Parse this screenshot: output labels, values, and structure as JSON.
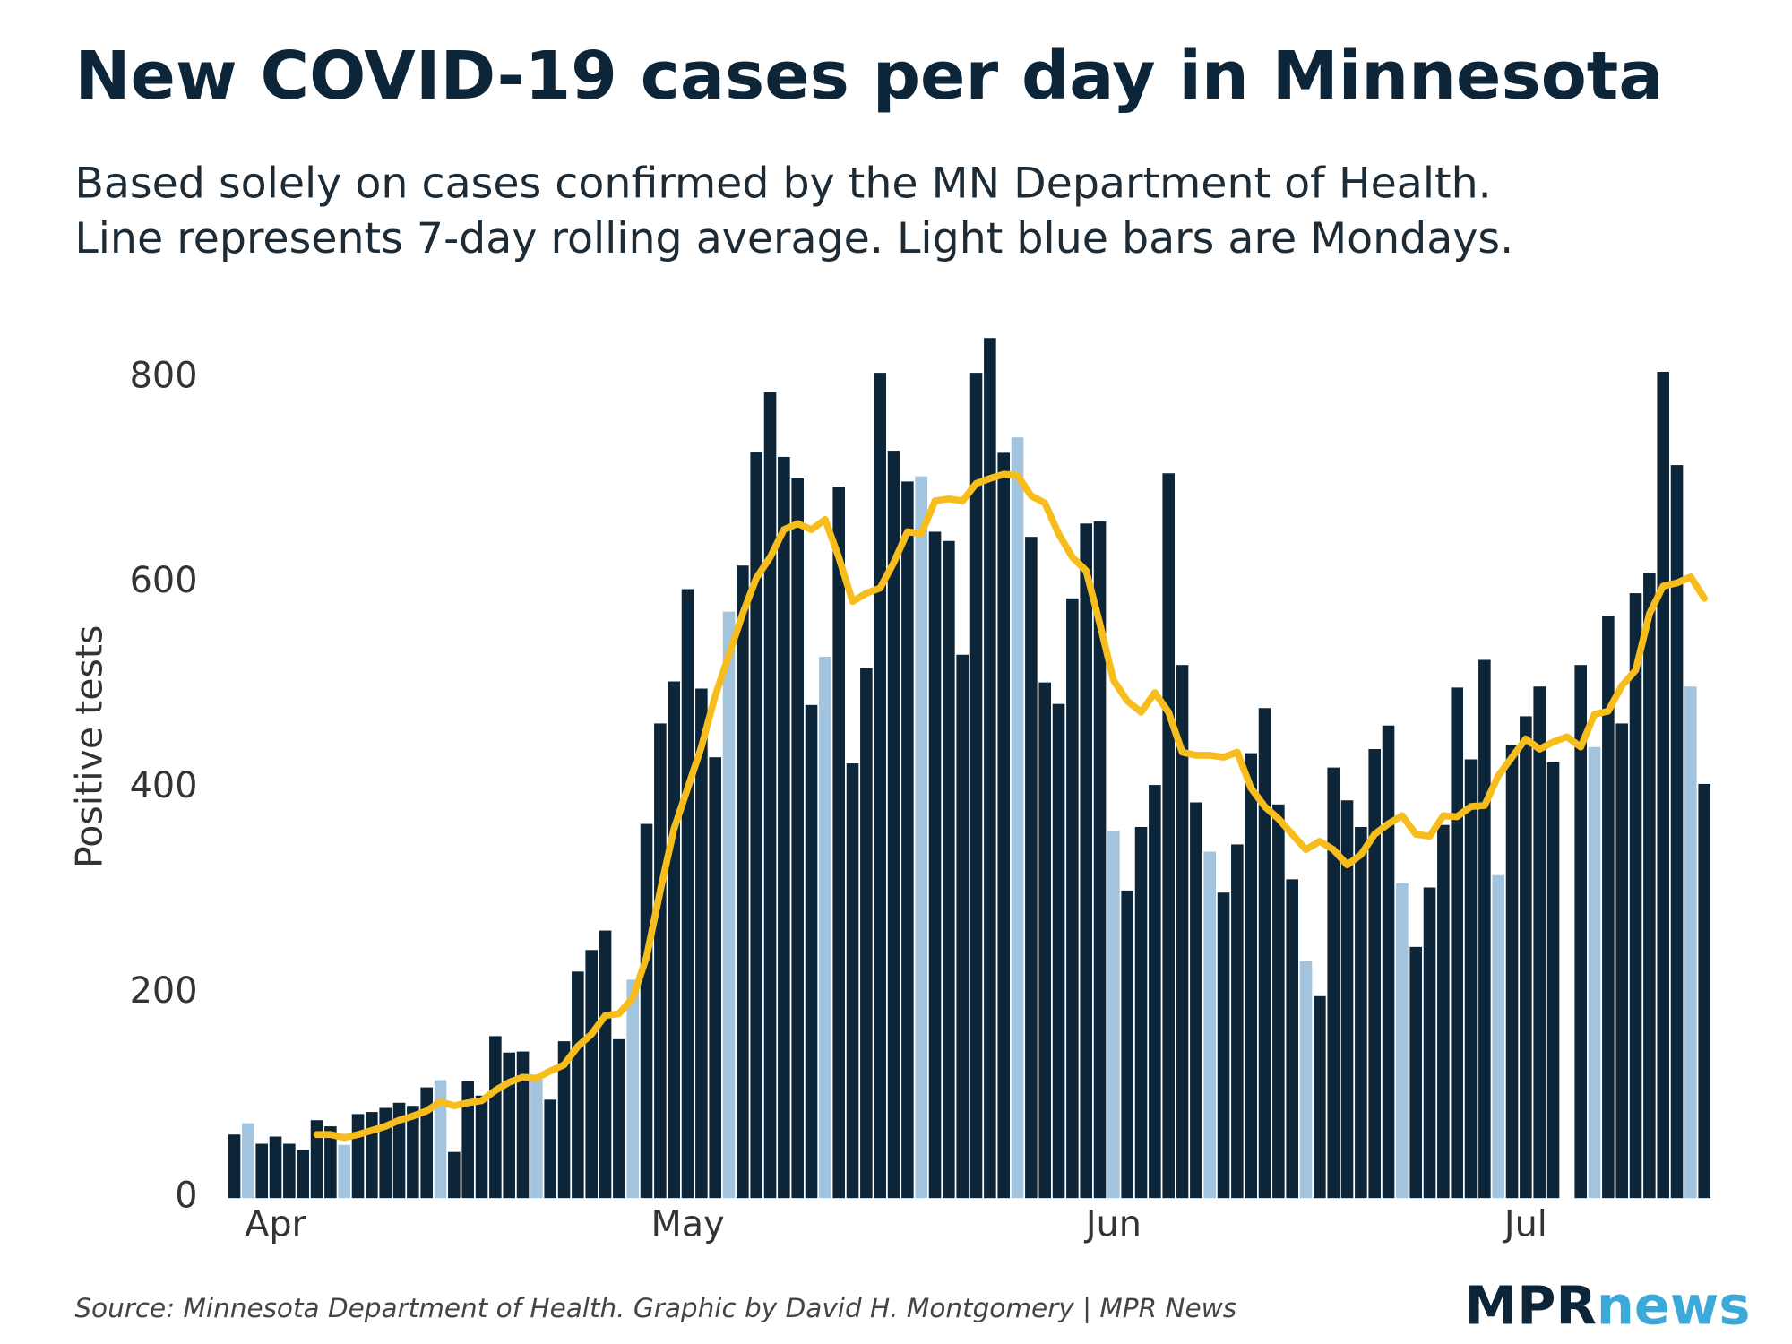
{
  "chart_data": {
    "type": "bar",
    "title": "New COVID-19 cases per day in Minnesota",
    "subtitle": [
      "Based solely on cases confirmed by the MN Department of Health.",
      "Line represents 7-day rolling average. Light blue bars are Mondays."
    ],
    "y_label": "Positive tests",
    "source": "Source: Minnesota Department of Health. Graphic by David H. Montgomery | MPR News",
    "logo": {
      "left": "MPR",
      "right": "news"
    },
    "categories": [
      null,
      null,
      null,
      "Apr",
      null,
      null,
      null,
      null,
      null,
      null,
      null,
      null,
      null,
      null,
      null,
      null,
      null,
      null,
      null,
      null,
      null,
      null,
      null,
      null,
      null,
      null,
      null,
      null,
      null,
      null,
      null,
      null,
      null,
      "May",
      null,
      null,
      null,
      null,
      null,
      null,
      null,
      null,
      null,
      null,
      null,
      null,
      null,
      null,
      null,
      null,
      null,
      null,
      null,
      null,
      null,
      null,
      null,
      null,
      null,
      null,
      null,
      null,
      null,
      null,
      "Jun",
      null,
      null,
      null,
      null,
      null,
      null,
      null,
      null,
      null,
      null,
      null,
      null,
      null,
      null,
      null,
      null,
      null,
      null,
      null,
      null,
      null,
      null,
      null,
      null,
      null,
      null,
      null,
      null,
      null,
      "Jul",
      null,
      null,
      null,
      null,
      null,
      null,
      null,
      null,
      null,
      null,
      null,
      null,
      null
    ],
    "values": [
      62,
      73,
      53,
      60,
      53,
      47,
      76,
      70,
      52,
      82,
      84,
      88,
      93,
      90,
      108,
      115,
      45,
      114,
      100,
      158,
      142,
      143,
      118,
      96,
      153,
      221,
      242,
      261,
      155,
      213,
      365,
      463,
      504,
      594,
      497,
      430,
      572,
      617,
      728,
      786,
      723,
      702,
      481,
      528,
      694,
      424,
      517,
      805,
      729,
      699,
      704,
      650,
      641,
      530,
      805,
      839,
      727,
      742,
      645,
      503,
      482,
      585,
      658,
      660,
      358,
      300,
      362,
      403,
      707,
      520,
      386,
      338,
      298,
      345,
      434,
      478,
      384,
      311,
      231,
      197,
      420,
      388,
      362,
      438,
      461,
      307,
      245,
      303,
      364,
      498,
      428,
      525,
      315,
      442,
      470,
      499,
      425,
      null,
      520,
      440,
      568,
      463,
      590,
      610,
      806,
      715,
      499,
      404
    ],
    "colors": [
      "#0d2538",
      "#a3c4de",
      "#0d2538",
      "#0d2538",
      "#0d2538",
      "#0d2538",
      "#0d2538",
      "#0d2538",
      "#a3c4de",
      "#0d2538",
      "#0d2538",
      "#0d2538",
      "#0d2538",
      "#0d2538",
      "#0d2538",
      "#a3c4de",
      "#0d2538",
      "#0d2538",
      "#0d2538",
      "#0d2538",
      "#0d2538",
      "#0d2538",
      "#a3c4de",
      "#0d2538",
      "#0d2538",
      "#0d2538",
      "#0d2538",
      "#0d2538",
      "#0d2538",
      "#a3c4de",
      "#0d2538",
      "#0d2538",
      "#0d2538",
      "#0d2538",
      "#0d2538",
      "#0d2538",
      "#a3c4de",
      "#0d2538",
      "#0d2538",
      "#0d2538",
      "#0d2538",
      "#0d2538",
      "#0d2538",
      "#a3c4de",
      "#0d2538",
      "#0d2538",
      "#0d2538",
      "#0d2538",
      "#0d2538",
      "#0d2538",
      "#a3c4de",
      "#0d2538",
      "#0d2538",
      "#0d2538",
      "#0d2538",
      "#0d2538",
      "#0d2538",
      "#a3c4de",
      "#0d2538",
      "#0d2538",
      "#0d2538",
      "#0d2538",
      "#0d2538",
      "#0d2538",
      "#a3c4de",
      "#0d2538",
      "#0d2538",
      "#0d2538",
      "#0d2538",
      "#0d2538",
      "#0d2538",
      "#a3c4de",
      "#0d2538",
      "#0d2538",
      "#0d2538",
      "#0d2538",
      "#0d2538",
      "#0d2538",
      "#a3c4de",
      "#0d2538",
      "#0d2538",
      "#0d2538",
      "#0d2538",
      "#0d2538",
      "#0d2538",
      "#a3c4de",
      "#0d2538",
      "#0d2538",
      "#0d2538",
      "#0d2538",
      "#0d2538",
      "#0d2538",
      "#a3c4de",
      "#0d2538",
      "#0d2538",
      "#0d2538",
      "#0d2538",
      "#0d2538",
      "#0d2538",
      "#a3c4de",
      "#0d2538",
      "#0d2538",
      "#0d2538",
      "#0d2538",
      "#0d2538",
      "#0d2538",
      "#a3c4de",
      "#0d2538"
    ],
    "line": {
      "color": "#f7bd1d",
      "values": [
        null,
        null,
        null,
        null,
        null,
        null,
        62,
        62,
        59,
        62,
        66,
        70,
        76,
        80,
        85,
        94,
        90,
        93,
        95,
        105,
        113,
        118,
        117,
        124,
        130,
        148,
        160,
        178,
        180,
        195,
        235,
        300,
        360,
        400,
        440,
        490,
        530,
        570,
        605,
        625,
        652,
        658,
        652,
        662,
        625,
        582,
        590,
        595,
        620,
        650,
        648,
        680,
        682,
        680,
        697,
        702,
        706,
        705,
        685,
        678,
        648,
        625,
        612,
        560,
        505,
        485,
        474,
        493,
        474,
        435,
        432,
        432,
        430,
        435,
        400,
        382,
        370,
        355,
        340,
        348,
        340,
        325,
        335,
        355,
        365,
        373,
        355,
        353,
        373,
        372,
        382,
        383,
        412,
        430,
        448,
        438,
        445,
        450,
        440,
        472,
        475,
        500,
        515,
        570,
        597,
        600,
        606,
        585
      ]
    },
    "ylim": [
      0,
      850
    ],
    "yticks": [
      0,
      200,
      400,
      600,
      800
    ],
    "grid": false
  }
}
